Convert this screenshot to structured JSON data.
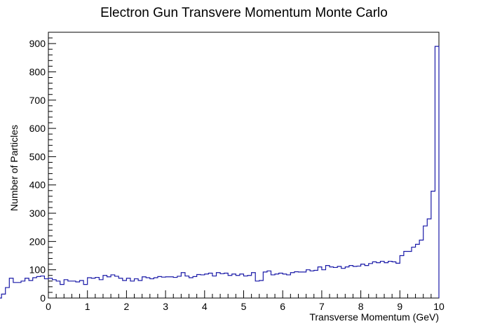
{
  "chart_data": {
    "type": "histogram",
    "title": "Electron Gun Transvere Momentum Monte Carlo",
    "xlabel": "Transverse Momentum (GeV)",
    "ylabel": "Number of Particles",
    "xlim": [
      0,
      10
    ],
    "ylim": [
      0,
      940
    ],
    "bin_width": 0.1,
    "x_ticks": [
      0,
      1,
      2,
      3,
      4,
      5,
      6,
      7,
      8,
      9,
      10
    ],
    "y_ticks": [
      0,
      100,
      200,
      300,
      400,
      500,
      600,
      700,
      800,
      900
    ],
    "line_color": "#1a1aa8",
    "values": [
      14,
      0,
      0,
      7,
      6,
      9,
      0,
      0,
      0,
      14,
      37,
      70,
      55,
      55,
      60,
      70,
      62,
      72,
      76,
      78,
      68,
      70,
      65,
      60,
      48,
      65,
      60,
      60,
      57,
      62,
      48,
      72,
      70,
      73,
      65,
      80,
      75,
      82,
      77,
      70,
      62,
      70,
      60,
      68,
      62,
      75,
      72,
      68,
      72,
      76,
      74,
      75,
      75,
      73,
      77,
      90,
      78,
      72,
      76,
      83,
      82,
      85,
      88,
      78,
      90,
      86,
      88,
      80,
      85,
      80,
      85,
      78,
      80,
      90,
      60,
      62,
      92,
      96,
      82,
      85,
      88,
      85,
      82,
      90,
      93,
      92,
      92,
      100,
      96,
      98,
      110,
      100,
      115,
      110,
      108,
      112,
      105,
      110,
      115,
      112,
      113,
      120,
      115,
      122,
      128,
      125,
      130,
      125,
      130,
      128,
      123,
      150,
      165,
      165,
      180,
      190,
      205,
      255,
      280,
      378,
      890
    ]
  }
}
